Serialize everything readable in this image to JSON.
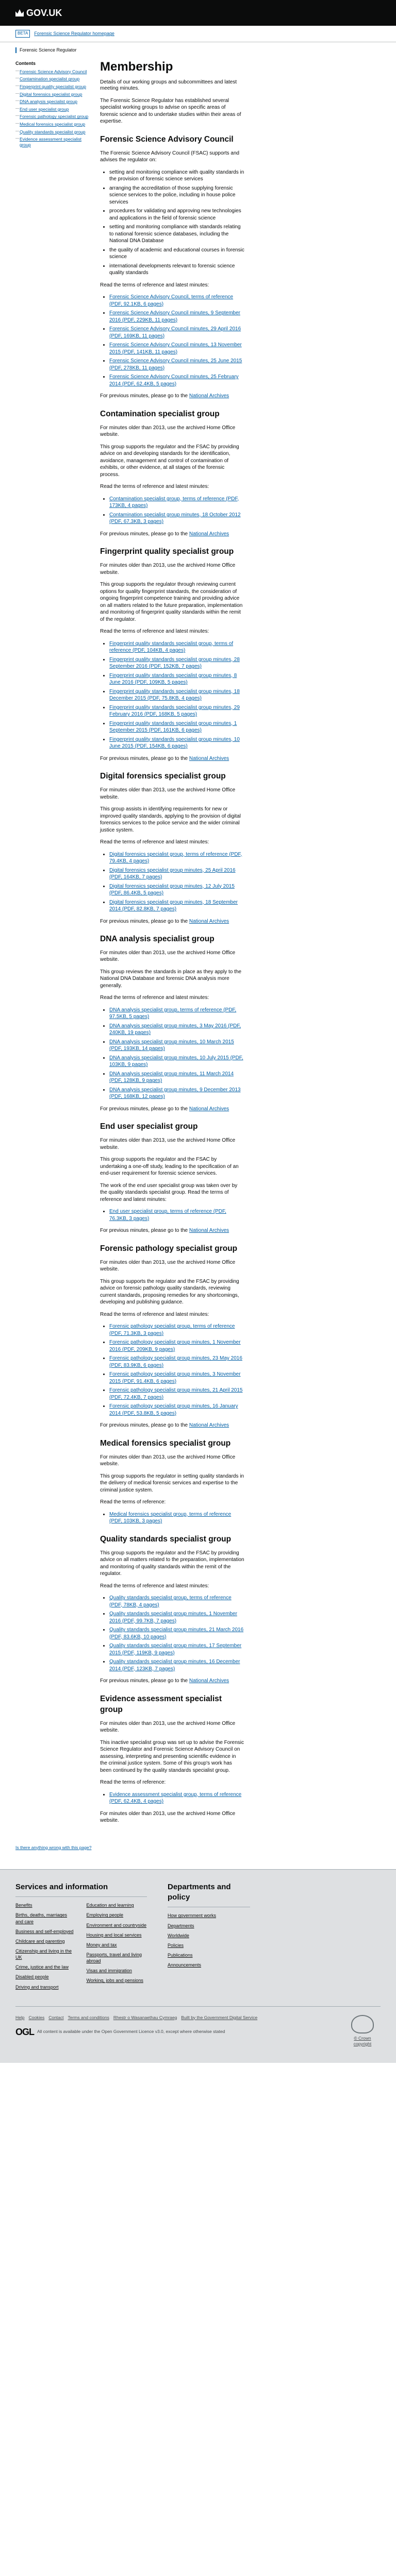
{
  "header": {
    "logo_text": "GOV.UK"
  },
  "subheader": {
    "beta_label": "BETA",
    "beta_text": "Forensic Science Regulator homepage"
  },
  "organisation": {
    "name": "Forensic Science Regulator"
  },
  "contents": {
    "title": "Contents",
    "items": [
      "Forensic Science Advisory Council",
      "Contamination specialist group",
      "Fingerprint quality specialist group",
      "Digital forensics specialist group",
      "DNA analysis specialist group",
      "End user specialist group",
      "Forensic pathology specialist group",
      "Medical forensics specialist group",
      "Quality standards specialist group",
      "Evidence assessment specialist group"
    ]
  },
  "page": {
    "title": "Membership",
    "lede": "Details of our working groups and subcommittees and latest meeting minutes.",
    "intro": "The Forensic Science Regulator has established several specialist working groups to advise on specific areas of forensic science and to undertake studies within their areas of expertise."
  },
  "sections": [
    {
      "title": "Forensic Science Advisory Council",
      "paras": [
        "The Forensic Science Advisory Council (FSAC) supports and advises the regulator on:"
      ],
      "bullets": [
        "setting and monitoring compliance with quality standards in the provision of forensic science services",
        "arranging the accreditation of those supplying forensic science services to the police, including in house police services",
        "procedures for validating and approving new technologies and applications in the field of forensic science",
        "setting and monitoring compliance with standards relating to national forensic science databases, including the National DNA Database",
        "the quality of academic and educational courses in forensic science",
        "international developments relevant to forensic science quality standards"
      ],
      "read_more": "Read the terms of reference and latest minutes:",
      "links": [
        "Forensic Science Advisory Council, terms of reference (PDF, 92.1KB, 6 pages)",
        "Forensic Science Advisory Council minutes, 9 September 2016 (PDF, 229KB, 11 pages)",
        "Forensic Science Advisory Council minutes, 29 April 2016 (PDF, 169KB, 11 pages)",
        "Forensic Science Advisory Council minutes, 13 November 2015 (PDF, 141KB, 11 pages)",
        "Forensic Science Advisory Council minutes, 25 June 2015 (PDF, 278KB, 11 pages)",
        "Forensic Science Advisory Council minutes, 25 February 2014 (PDF, 62.4KB, 5 pages)"
      ],
      "archive_prefix": "For previous minutes, please go to the ",
      "archive_link": "National Archives",
      "archive_suffix": ""
    },
    {
      "title": "Contamination specialist group",
      "paras": [
        "For minutes older than 2013, use the archived Home Office website.",
        "This group supports the regulator and the FSAC by providing advice on and developing standards for the identification, avoidance, management and control of contamination of exhibits, or other evidence, at all stages of the forensic process.",
        "Read the terms of reference and latest minutes:"
      ],
      "bullets": [],
      "read_more": "",
      "links": [
        "Contamination specialist group, terms of reference (PDF, 173KB, 4 pages)",
        "Contamination specialist group minutes, 18 October 2012 (PDF, 67.3KB, 3 pages)"
      ],
      "archive_prefix": "For previous minutes, please go to the ",
      "archive_link": "National Archives",
      "archive_suffix": ""
    },
    {
      "title": "Fingerprint quality specialist group",
      "paras": [
        "For minutes older than 2013, use the archived Home Office website.",
        "This group supports the regulator through reviewing current options for quality fingerprint standards, the consideration of ongoing fingerprint competence training and providing advice on all matters related to the future preparation, implementation and monitoring of fingerprint quality standards within the remit of the regulator.",
        "Read the terms of reference and latest minutes:"
      ],
      "bullets": [],
      "read_more": "",
      "links": [
        "Fingerprint quality standards specialist group, terms of reference (PDF, 104KB, 4 pages)",
        "Fingerprint quality standards specialist group minutes, 28 September 2016 (PDF, 152KB, 7 pages)",
        "Fingerprint quality standards specialist group minutes, 8 June 2016 (PDF, 109KB, 5 pages)",
        "Fingerprint quality standards specialist group minutes, 18 December 2015 (PDF, 75.8KB, 4 pages)",
        "Fingerprint quality standards specialist group minutes, 29 February 2016 (PDF, 168KB, 5 pages)",
        "Fingerprint quality standards specialist group minutes, 1 September 2015 (PDF, 161KB, 6 pages)",
        "Fingerprint quality standards specialist group minutes, 10 June 2015 (PDF, 154KB, 6 pages)"
      ],
      "archive_prefix": "For previous minutes, please go to the ",
      "archive_link": "National Archives",
      "archive_suffix": ""
    },
    {
      "title": "Digital forensics specialist group",
      "paras": [
        "For minutes older than 2013, use the archived Home Office website.",
        "This group assists in identifying requirements for new or improved quality standards, applying to the provision of digital forensics services to the police service and the wider criminal justice system.",
        "Read the terms of reference and latest minutes:"
      ],
      "bullets": [],
      "read_more": "",
      "links": [
        "Digital forensics specialist group, terms of reference (PDF, 79.4KB, 4 pages)",
        "Digital forensics specialist group minutes, 25 April 2016 (PDF, 164KB, 7 pages)",
        "Digital forensics specialist group minutes, 12 July 2015 (PDF, 86.4KB, 5 pages)",
        "Digital forensics specialist group minutes, 18 September 2014 (PDF, 82.8KB, 7 pages)"
      ],
      "archive_prefix": "For previous minutes, please go to the ",
      "archive_link": "National Archives",
      "archive_suffix": ""
    },
    {
      "title": "DNA analysis specialist group",
      "paras": [
        "For minutes older than 2013, use the archived Home Office website.",
        "This group reviews the standards in place as they apply to the National DNA Database and forensic DNA analysis more generally.",
        "Read the terms of reference and latest minutes:"
      ],
      "bullets": [],
      "read_more": "",
      "links": [
        "DNA analysis specialist group, terms of reference (PDF, 97.5KB, 5 pages)",
        "DNA analysis specialist group minutes, 3 May 2016 (PDF, 240KB, 19 pages)",
        "DNA analysis specialist group minutes, 10 March 2015 (PDF, 193KB, 14 pages)",
        "DNA analysis specialist group minutes, 10 July 2015 (PDF, 103KB, 9 pages)",
        "DNA analysis specialist group minutes, 11 March 2014 (PDF, 128KB, 9 pages)",
        "DNA analysis specialist group minutes, 9 December 2013 (PDF, 168KB, 12 pages)"
      ],
      "archive_prefix": "For previous minutes, please go to the ",
      "archive_link": "National Archives",
      "archive_suffix": ""
    },
    {
      "title": "End user specialist group",
      "paras": [
        "For minutes older than 2013, use the archived Home Office website.",
        "This group supports the regulator and the FSAC by undertaking a one-off study, leading to the specification of an end-user requirement for forensic science services.",
        "The work of the end user specialist group was taken over by the quality standards specialist group. Read the terms of reference and latest minutes:"
      ],
      "bullets": [],
      "read_more": "",
      "links": [
        "End user specialist group, terms of reference (PDF, 76.3KB, 3 pages)"
      ],
      "archive_prefix": "For previous minutes, please go to the ",
      "archive_link": "National Archives",
      "archive_suffix": ""
    },
    {
      "title": "Forensic pathology specialist group",
      "paras": [
        "For minutes older than 2013, use the archived Home Office website.",
        "This group supports the regulator and the FSAC by providing advice on forensic pathology quality standards, reviewing current standards, proposing remedies for any shortcomings, developing and publishing guidance.",
        "Read the terms of reference and latest minutes:"
      ],
      "bullets": [],
      "read_more": "",
      "links": [
        "Forensic pathology specialist group, terms of reference (PDF, 71.3KB, 3 pages)",
        "Forensic pathology specialist group minutes, 1 November 2016 (PDF, 209KB, 9 pages)",
        "Forensic pathology specialist group minutes, 23 May 2016 (PDF, 83.9KB, 6 pages)",
        "Forensic pathology specialist group minutes, 3 November 2015 (PDF, 91.4KB, 6 pages)",
        "Forensic pathology specialist group minutes, 21 April 2015 (PDF, 72.4KB, 7 pages)",
        "Forensic pathology specialist group minutes, 16 January 2014 (PDF, 53.8KB, 5 pages)"
      ],
      "archive_prefix": "For previous minutes, please go to the ",
      "archive_link": "National Archives",
      "archive_suffix": ""
    },
    {
      "title": "Medical forensics specialist group",
      "paras": [
        "For minutes older than 2013, use the archived Home Office website.",
        "This group supports the regulator in setting quality standards in the delivery of medical forensic services and expertise to the criminal justice system.",
        "Read the terms of reference:"
      ],
      "bullets": [],
      "read_more": "",
      "links": [
        "Medical forensics specialist group, terms of reference (PDF, 103KB, 3 pages)"
      ],
      "archive_prefix": "",
      "archive_link": "",
      "archive_suffix": ""
    },
    {
      "title": "Quality standards specialist group",
      "paras": [
        "This group supports the regulator and the FSAC by providing advice on all matters related to the preparation, implementation and monitoring of quality standards within the remit of the regulator.",
        "Read the terms of reference and latest minutes:"
      ],
      "bullets": [],
      "read_more": "",
      "links": [
        "Quality standards specialist group, terms of reference (PDF, 78KB, 4 pages)",
        "Quality standards specialist group minutes, 1 November 2016 (PDF, 99.7KB, 7 pages)",
        "Quality standards specialist group minutes, 21 March 2016 (PDF, 83.6KB, 10 pages)",
        "Quality standards specialist group minutes, 17 September 2015 (PDF, 119KB, 9 pages)",
        "Quality standards specialist group minutes, 16 December 2014 (PDF, 123KB, 7 pages)"
      ],
      "archive_prefix": "For previous minutes, please go to the ",
      "archive_link": "National Archives",
      "archive_suffix": ""
    },
    {
      "title": "Evidence assessment specialist group",
      "paras": [
        "For minutes older than 2013, use the archived Home Office website.",
        "This inactive specialist group was set up to advise the Forensic Science Regulator and Forensic Science Advisory Council on assessing, interpreting and presenting scientific evidence in the criminal justice system. Some of this group's work has been continued by the quality standards specialist group.",
        "Read the terms of reference:"
      ],
      "bullets": [],
      "read_more": "",
      "links": [
        "Evidence assessment specialist group, terms of reference (PDF, 62.4KB, 4 pages)"
      ],
      "archive_prefix": "",
      "archive_link": "",
      "archive_suffix": "For minutes older than 2013, use the archived Home Office website."
    }
  ],
  "feedback": {
    "text": "Is there anything wrong with this page?"
  },
  "footer": {
    "services": {
      "title": "Services and information",
      "items": [
        "Benefits",
        "Births, deaths, marriages and care",
        "Business and self-employed",
        "Childcare and parenting",
        "Citizenship and living in the UK",
        "Crime, justice and the law",
        "Disabled people",
        "Driving and transport",
        "Education and learning",
        "Employing people",
        "Environment and countryside",
        "Housing and local services",
        "Money and tax",
        "Passports, travel and living abroad",
        "Visas and immigration",
        "Working, jobs and pensions"
      ]
    },
    "departments": {
      "title": "Departments and policy",
      "items": [
        "How government works",
        "Departments",
        "Worldwide",
        "Policies",
        "Publications",
        "Announcements"
      ]
    },
    "links": [
      "Help",
      "Cookies",
      "Contact",
      "Terms and conditions",
      "Rhestr o Wasanaethau Cymraeg",
      "Built by the Government Digital Service"
    ],
    "ogl_logo": "OGL",
    "licence": "All content is available under the Open Government Licence v3.0, except where otherwise stated",
    "copyright": "© Crown copyright"
  }
}
